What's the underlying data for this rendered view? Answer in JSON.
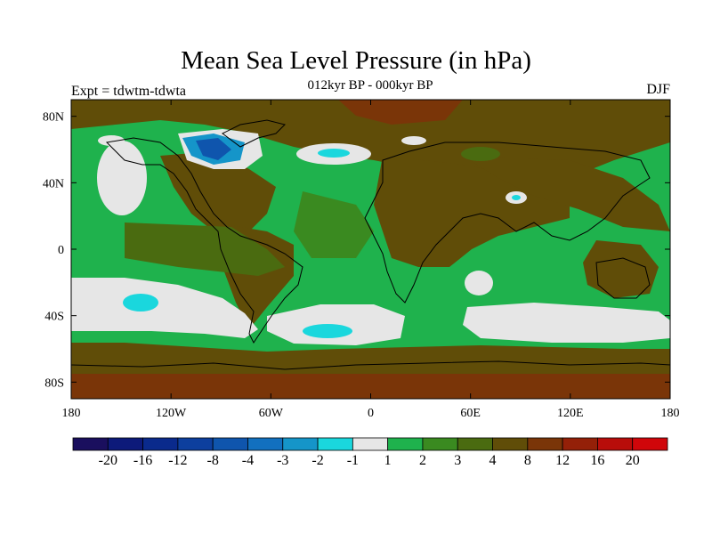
{
  "title": "Mean Sea Level Pressure (in hPa)",
  "subtitle": "012kyr BP - 000kyr BP",
  "left_label": "Expt = tdwtm-tdwta",
  "right_label": "DJF",
  "lon_ticks": [
    "180",
    "120W",
    "60W",
    "0",
    "60E",
    "120E",
    "180"
  ],
  "lat_ticks": [
    "80N",
    "40N",
    "0",
    "40S",
    "80S"
  ],
  "colorbar": {
    "colors": [
      "#1a0f5e",
      "#0d1a7a",
      "#0a2a8c",
      "#0d3f9e",
      "#0f55ad",
      "#1270bf",
      "#1595c9",
      "#1ad7dd",
      "#e6e6e6",
      "#1fb24d",
      "#3a8a20",
      "#4a6b10",
      "#604d08",
      "#7a3508",
      "#942008",
      "#b80d0a",
      "#d0060a"
    ],
    "labels": [
      "-20",
      "-16",
      "-12",
      "-8",
      "-4",
      "-3",
      "-2",
      "-1",
      "1",
      "2",
      "3",
      "4",
      "8",
      "12",
      "16",
      "20"
    ]
  }
}
